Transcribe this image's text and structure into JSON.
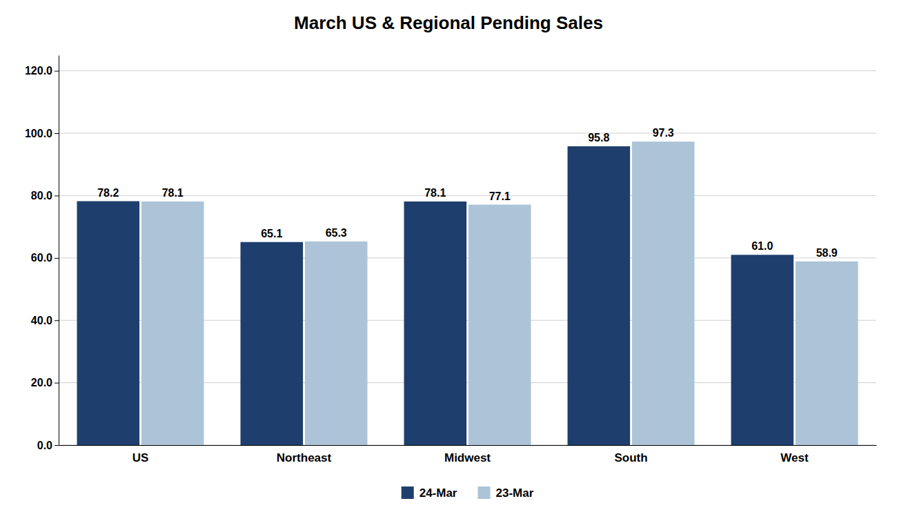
{
  "chart_data": {
    "type": "bar",
    "title": "March US & Regional Pending Sales",
    "categories": [
      "US",
      "Northeast",
      "Midwest",
      "South",
      "West"
    ],
    "series": [
      {
        "name": "24-Mar",
        "color": "#1e3f6d",
        "values": [
          78.2,
          65.1,
          78.1,
          95.8,
          61.0
        ],
        "value_labels": [
          "78.2",
          "65.1",
          "78.1",
          "95.8",
          "61.0"
        ]
      },
      {
        "name": "23-Mar",
        "color": "#adc4d8",
        "values": [
          78.1,
          65.3,
          77.1,
          97.3,
          58.9
        ],
        "value_labels": [
          "78.1",
          "65.3",
          "77.1",
          "97.3",
          "58.9"
        ]
      }
    ],
    "ylim": [
      0,
      125
    ],
    "yticks": [
      {
        "value": 0,
        "label": "0.0"
      },
      {
        "value": 20,
        "label": "20.0"
      },
      {
        "value": 40,
        "label": "40.0"
      },
      {
        "value": 60,
        "label": "60.0"
      },
      {
        "value": 80,
        "label": "80.0"
      },
      {
        "value": 100,
        "label": "100.0"
      },
      {
        "value": 120,
        "label": "120.0"
      }
    ],
    "grid": true,
    "legend": "bottom",
    "data_labels": true
  }
}
